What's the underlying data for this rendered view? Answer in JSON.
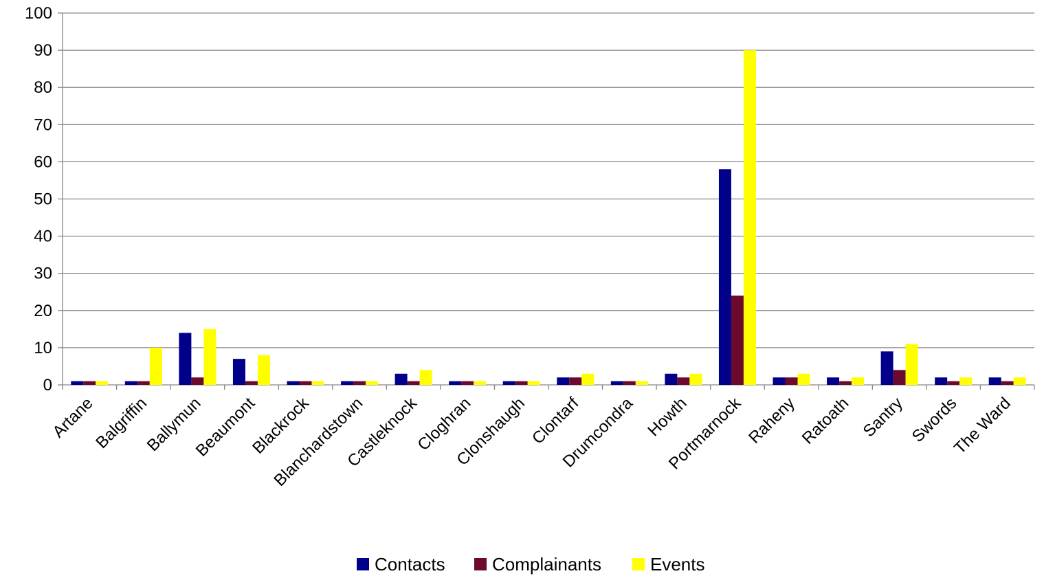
{
  "chart_data": {
    "type": "bar",
    "title": "",
    "xlabel": "",
    "ylabel": "",
    "ylim": [
      0,
      100
    ],
    "yticks": [
      "0",
      "10",
      "20",
      "30",
      "40",
      "50",
      "60",
      "70",
      "80",
      "90",
      "100"
    ],
    "grid": true,
    "legend_position": "bottom",
    "categories": [
      "Artane",
      "Balgriffin",
      "Ballymun",
      "Beaumont",
      "Blackrock",
      "Blanchardstown",
      "Castleknock",
      "Cloghran",
      "Clonshaugh",
      "Clontarf",
      "Drumcondra",
      "Howth",
      "Portmarnock",
      "Raheny",
      "Ratoath",
      "Santry",
      "Swords",
      "The Ward"
    ],
    "series": [
      {
        "name": "Contacts",
        "color": "#00008B",
        "values": [
          1,
          1,
          14,
          7,
          1,
          1,
          3,
          1,
          1,
          2,
          1,
          3,
          58,
          2,
          2,
          9,
          2,
          2
        ]
      },
      {
        "name": "Complainants",
        "color": "#6B0A2E",
        "values": [
          1,
          1,
          2,
          1,
          1,
          1,
          1,
          1,
          1,
          2,
          1,
          2,
          24,
          2,
          1,
          4,
          1,
          1
        ]
      },
      {
        "name": "Events",
        "color": "#FFFF00",
        "values": [
          1,
          10,
          15,
          8,
          1,
          1,
          4,
          1,
          1,
          3,
          1,
          3,
          90,
          3,
          2,
          11,
          2,
          2
        ]
      }
    ]
  }
}
